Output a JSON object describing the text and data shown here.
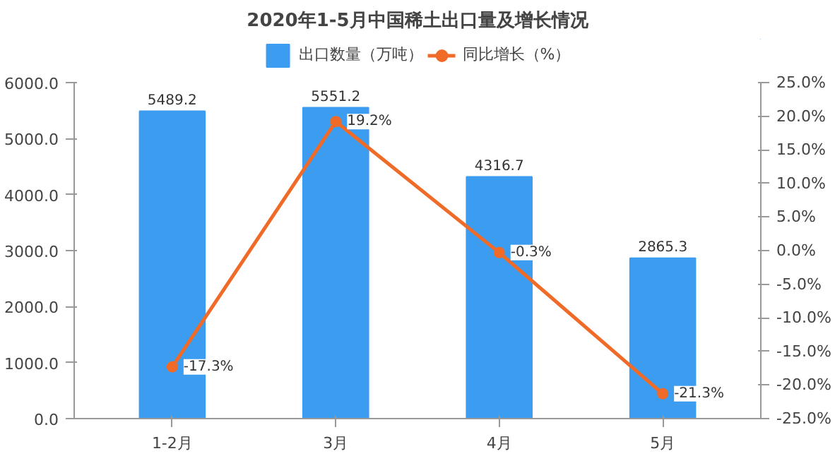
{
  "chart_data": {
    "type": "bar",
    "title": "2020年1-5月中国稀土出口量及增长情况",
    "categories": [
      "1-2月",
      "3月",
      "4月",
      "5月"
    ],
    "series": [
      {
        "name": "出口数量（万吨）",
        "color": "#3c9cf0",
        "values": [
          5489.2,
          5551.2,
          4316.7,
          2865.3
        ],
        "value_labels": [
          "5489.2",
          "5551.2",
          "4316.7",
          "2865.3"
        ]
      },
      {
        "name": "同比增长（%）",
        "type": "line",
        "axis": "y2",
        "color": "#f06a28",
        "values": [
          -17.3,
          19.2,
          -0.3,
          -21.3
        ],
        "value_labels": [
          "-17.3%",
          "19.2%",
          "-0.3%",
          "-21.3%"
        ]
      }
    ],
    "ylim": [
      0,
      6000
    ],
    "yticks": [
      {
        "value": 0,
        "label": "0.0"
      },
      {
        "value": 1000,
        "label": "1000.0"
      },
      {
        "value": 2000,
        "label": "2000.0"
      },
      {
        "value": 3000,
        "label": "3000.0"
      },
      {
        "value": 4000,
        "label": "4000.0"
      },
      {
        "value": 5000,
        "label": "5000.0"
      },
      {
        "value": 6000,
        "label": "6000.0"
      }
    ],
    "y2lim": [
      -25,
      25
    ],
    "y2ticks": [
      {
        "value": -25,
        "label": "-25.0%"
      },
      {
        "value": -20,
        "label": "-20.0%"
      },
      {
        "value": -15,
        "label": "-15.0%"
      },
      {
        "value": -10,
        "label": "-10.0%"
      },
      {
        "value": -5,
        "label": "-5.0%"
      },
      {
        "value": 0,
        "label": "0.0%"
      },
      {
        "value": 5,
        "label": "5.0%"
      },
      {
        "value": 10,
        "label": "10.0%"
      },
      {
        "value": 15,
        "label": "15.0%"
      },
      {
        "value": 20,
        "label": "20.0%"
      },
      {
        "value": 25,
        "label": "25.0%"
      }
    ],
    "legend": "top",
    "marker": "circle",
    "grid": false
  }
}
